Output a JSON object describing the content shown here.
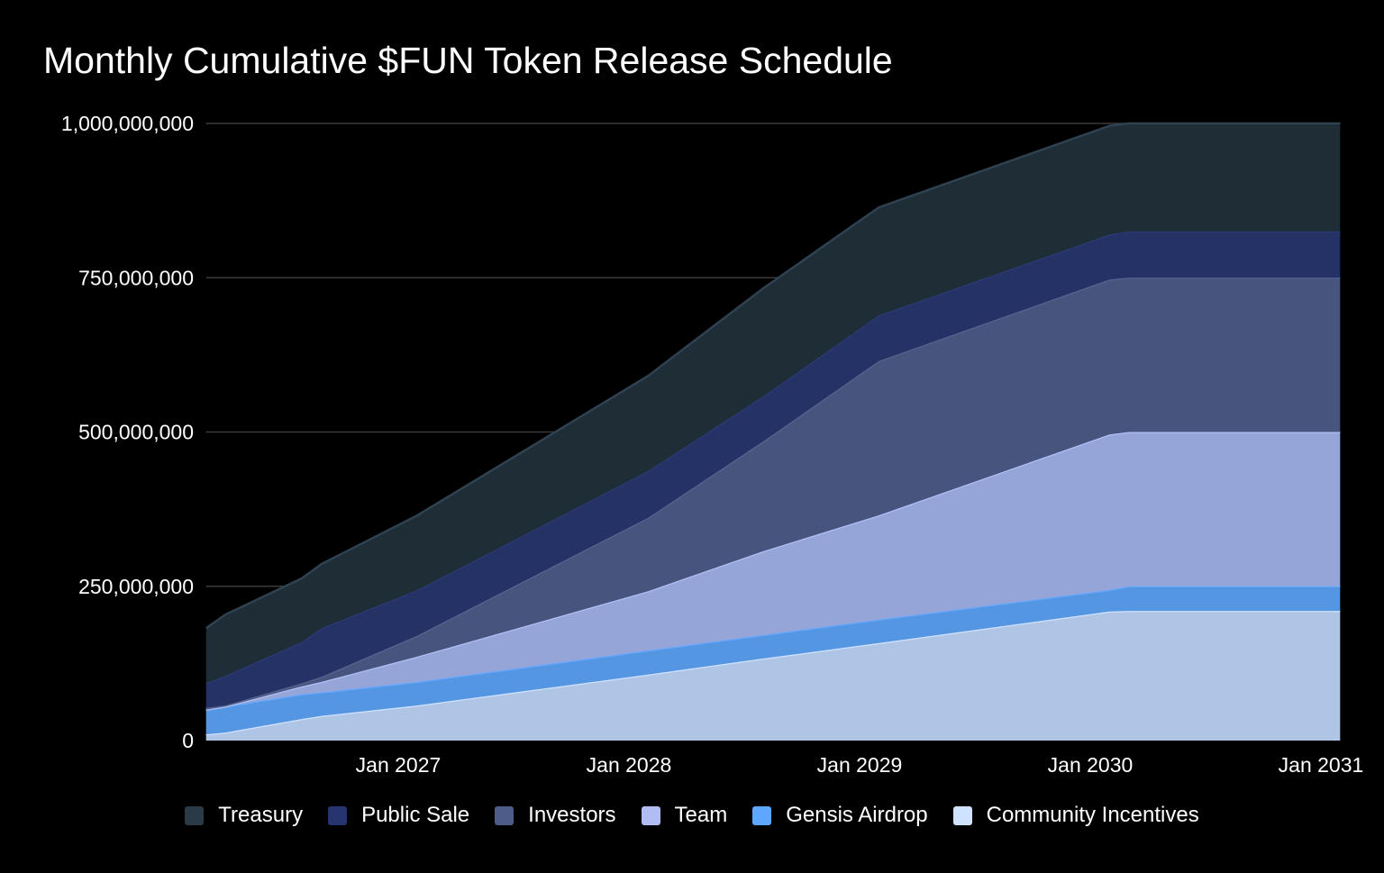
{
  "chart_data": {
    "type": "area",
    "stacked": true,
    "title": "Monthly Cumulative $FUN Token Release Schedule",
    "xlabel": "",
    "ylabel": "",
    "ylim": [
      0,
      1000000000
    ],
    "yticks": [
      "0",
      "250,000,000",
      "500,000,000",
      "750,000,000",
      "1,000,000,000"
    ],
    "ytick_values": [
      0,
      250000000,
      500000000,
      750000000,
      1000000000
    ],
    "xticks": [
      "Jan 2027",
      "Jan 2028",
      "Jan 2029",
      "Jan 2030",
      "Jan 2031"
    ],
    "xtick_dates": [
      "2027-01",
      "2028-01",
      "2029-01",
      "2030-01",
      "2031-01"
    ],
    "xlim": [
      "2026-03",
      "2031-02"
    ],
    "grid": true,
    "legend_position": "bottom",
    "x": [
      "2026-03",
      "2026-04",
      "2026-08",
      "2026-09",
      "2027-02",
      "2028-02",
      "2028-08",
      "2029-02",
      "2030-02",
      "2030-03",
      "2031-02"
    ],
    "series": [
      {
        "name": "Community Incentives",
        "color": "#aec5e6",
        "line": "#d2e3ff",
        "swatch": "#cfe2ff",
        "values": [
          10000000,
          13000000,
          35000000,
          40000000,
          57000000,
          107000000,
          133000000,
          158000000,
          209000000,
          210000000,
          210000000
        ]
      },
      {
        "name": "Gensis Airdrop",
        "color": "#5596e3",
        "line": "#62a8ff",
        "swatch": "#5ea6ff",
        "values": [
          40000000,
          42000000,
          40000000,
          38000000,
          38000000,
          39000000,
          38000000,
          38000000,
          35000000,
          40000000,
          40000000
        ]
      },
      {
        "name": "Team",
        "color": "#95a5d8",
        "line": "#b3c0f7",
        "swatch": "#b0bcf2",
        "values": [
          0,
          0,
          13000000,
          17000000,
          41000000,
          96000000,
          136000000,
          169000000,
          252000000,
          250000000,
          250000000
        ]
      },
      {
        "name": "Investors",
        "color": "#47557e",
        "line": "#56648f",
        "swatch": "#4e5c8a",
        "values": [
          3000000,
          2000000,
          5000000,
          8000000,
          34000000,
          119000000,
          178000000,
          250000000,
          251000000,
          250000000,
          250000000
        ]
      },
      {
        "name": "Public Sale",
        "color": "#243266",
        "line": "#2b3a74",
        "swatch": "#263570",
        "values": [
          40000000,
          48000000,
          67000000,
          79000000,
          74000000,
          76000000,
          73000000,
          74000000,
          73000000,
          75000000,
          75000000
        ]
      },
      {
        "name": "Treasury",
        "color": "#1f2d37",
        "line": "#2e4252",
        "swatch": "#2a3a46",
        "values": [
          89000000,
          99000000,
          103000000,
          104000000,
          121000000,
          154000000,
          175000000,
          175000000,
          176000000,
          175000000,
          175000000
        ]
      }
    ],
    "legend_order": [
      "Treasury",
      "Public Sale",
      "Investors",
      "Team",
      "Gensis Airdrop",
      "Community Incentives"
    ]
  }
}
